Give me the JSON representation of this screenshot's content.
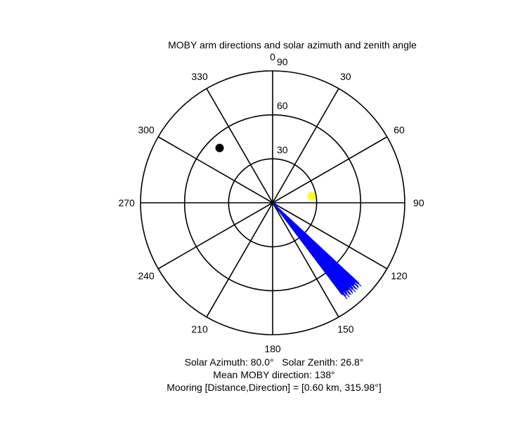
{
  "chart_data": {
    "type": "polar",
    "title": "MOBY arm directions and solar azimuth and zenith angle",
    "radial_ticks": [
      30,
      60,
      90
    ],
    "radial_max": 90,
    "angle_ticks": [
      0,
      30,
      60,
      90,
      120,
      150,
      180,
      210,
      240,
      270,
      300,
      330
    ],
    "angle_direction": "clockwise",
    "angle_zero": "top",
    "series": [
      {
        "kind": "arm_lines",
        "color": "#0000ff",
        "direction_min_deg": 133,
        "direction_max_deg": 143,
        "radius_min": 78,
        "radius_max": 83,
        "count": 30
      },
      {
        "kind": "marker",
        "symbol": "star",
        "color": "#ffff00",
        "azimuth_deg": 80.0,
        "zenith_deg": 26.8
      },
      {
        "kind": "marker",
        "symbol": "filled-circle",
        "color": "#000000",
        "azimuth_deg": 315.98,
        "radius": 52
      }
    ],
    "annotations": {
      "line1_azimuth": "Solar Azimuth: 80.0°",
      "line1_zenith": "Solar Zenith: 26.8°",
      "line2": "Mean MOBY direction: 138°",
      "line3": "Mooring [Distance,Direction] = [0.60 km, 315.98°]"
    }
  }
}
